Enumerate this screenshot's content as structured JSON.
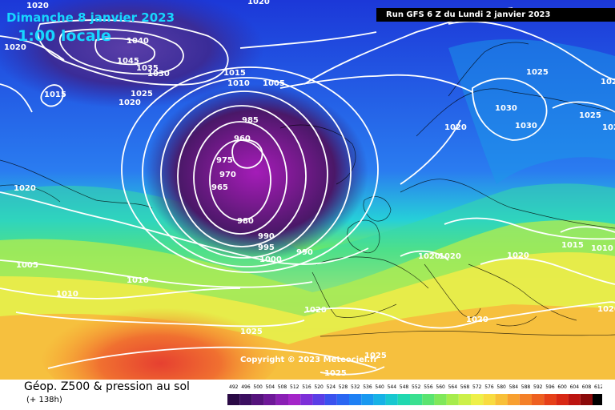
{
  "map": {
    "date_label": "Dimanche 8 janvier 2023",
    "time_label": "1:00 locale",
    "run_label": "Run GFS 6 Z du Lundi 2 janvier 2023",
    "copyright": "Copyright © 2023 Meteociel.fr",
    "isobar_labels": {
      "i1": "1020",
      "i2": "1020",
      "i3": "1040",
      "i4": "1045",
      "i5": "1035",
      "i6": "1030",
      "i7": "1020",
      "i8": "1015",
      "i9": "1025",
      "i10": "1020",
      "i11": "1015",
      "i12": "1010",
      "i13": "1005",
      "i14": "985",
      "i15": "975",
      "i16": "970",
      "i17": "965",
      "i18": "980",
      "i19": "990",
      "i20": "995",
      "i21": "1000",
      "i22": "990",
      "i23": "1020",
      "i24": "1005",
      "i25": "1010",
      "i26": "1010",
      "i27": "1025",
      "i28": "1025",
      "i29": "1030",
      "i30": "1030",
      "i31": "1025",
      "i32": "1020",
      "i33": "1020",
      "i34": "1020",
      "i35": "1020",
      "i36": "1015",
      "i37": "1010",
      "i38": "1020",
      "i39": "1020",
      "i40": "1020",
      "i41": "1025",
      "i42": "1025",
      "i43": "1020",
      "i44": "1020",
      "i45": "960"
    }
  },
  "footer": {
    "product_title": "Géop. Z500 & pression au sol",
    "forecast_hours": "(+ 138h)"
  },
  "legend": {
    "values": [
      "492",
      "496",
      "500",
      "504",
      "508",
      "512",
      "516",
      "520",
      "524",
      "528",
      "532",
      "536",
      "540",
      "544",
      "548",
      "552",
      "556",
      "560",
      "564",
      "568",
      "572",
      "576",
      "580",
      "584",
      "588",
      "592",
      "596",
      "600",
      "604",
      "608",
      "612"
    ],
    "colors": [
      "#2a0a45",
      "#3c0f60",
      "#55137c",
      "#6e1898",
      "#8a1fb4",
      "#a425c8",
      "#7d2fd8",
      "#5a3ee6",
      "#3a52ee",
      "#2a66f2",
      "#1e80f4",
      "#1899f0",
      "#16b2e6",
      "#18c8d0",
      "#20d8b0",
      "#3ae090",
      "#5ae470",
      "#80e85a",
      "#a6ec4c",
      "#ccf048",
      "#eef048",
      "#f8dc40",
      "#f8c038",
      "#f8a030",
      "#f48028",
      "#ee6020",
      "#e64018",
      "#d82814",
      "#bc1410",
      "#8a0a0a",
      "#000000"
    ]
  }
}
